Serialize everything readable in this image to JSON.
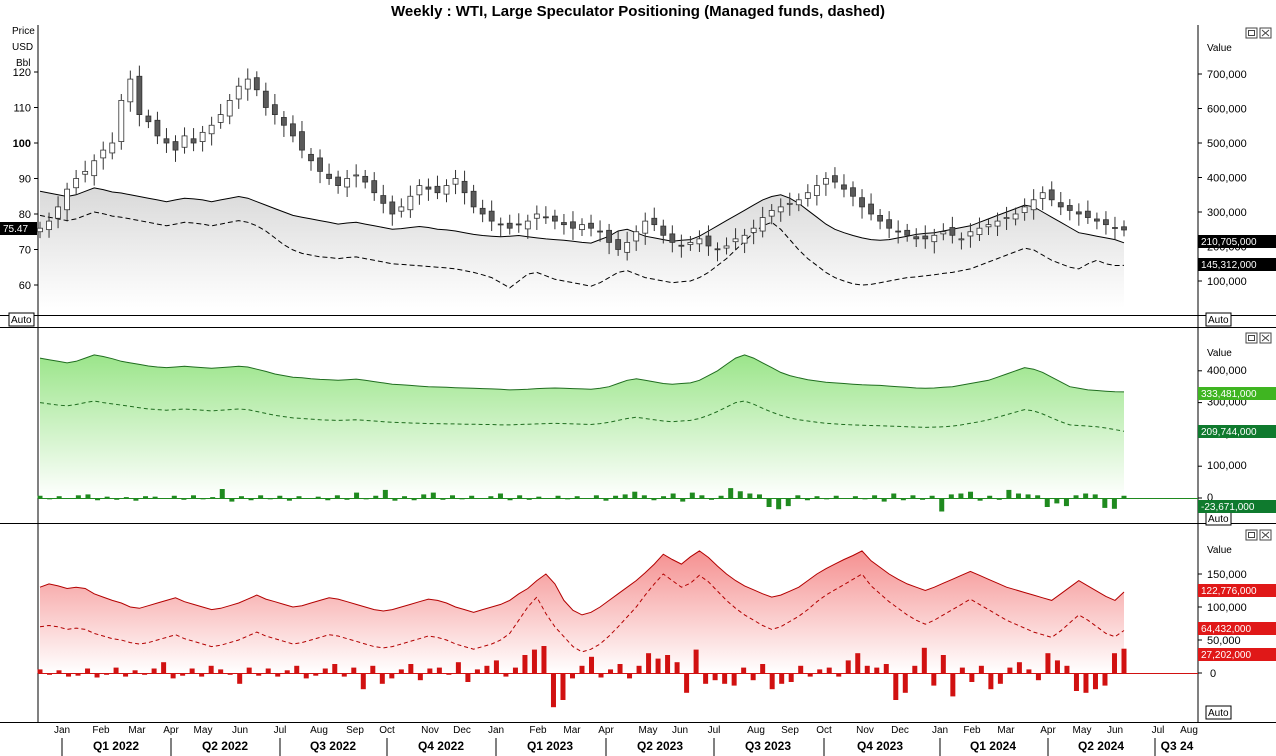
{
  "title": "Weekly : WTI, Large Speculator Positioning (Managed funds, dashed)",
  "auto_label": "Auto",
  "panel1": {
    "y_unit_lines": [
      "Price",
      "USD",
      "Bbl"
    ],
    "left_ticks": [
      60,
      70,
      80,
      90,
      100,
      110,
      120
    ],
    "bold_ticks": [
      100
    ],
    "right_header": "Value",
    "right_ticks": [
      "100,000",
      "200,000",
      "300,000",
      "400,000",
      "500,000",
      "600,000",
      "700,000"
    ],
    "price_tag": "75.47",
    "tags": [
      "210,705,000",
      "145,312,000"
    ]
  },
  "panel2": {
    "right_header": "Value",
    "right_ticks": [
      "0",
      "100,000",
      "200,000",
      "300,000",
      "400,000"
    ],
    "tags": [
      "333,481,000",
      "209,744,000",
      "-23,671,000"
    ]
  },
  "panel3": {
    "right_header": "Value",
    "right_ticks": [
      "0",
      "50,000",
      "100,000",
      "150,000"
    ],
    "tags": [
      "122,776,000",
      "64,432,000",
      "27,202,000"
    ]
  },
  "colors": {
    "candle_down": "#5a5a5a",
    "candle_up": "#ffffff",
    "long_fill": "#9be58a",
    "long_bar": "#1f8a1f",
    "short_fill": "#f59090",
    "short_bar": "#d11111",
    "tag_green": "#3fb521",
    "tag_darkgreen": "#0f7a2e",
    "tag_red": "#e01818"
  },
  "chart_data": {
    "type": "candlestick",
    "title": "Weekly : WTI, Large Speculator Positioning (Managed funds, dashed)",
    "x_months": [
      "Jan",
      "Feb",
      "Mar",
      "Apr",
      "May",
      "Jun",
      "Jul",
      "Aug",
      "Sep",
      "Oct",
      "Nov",
      "Dec",
      "Jan",
      "Feb",
      "Mar",
      "Apr",
      "May",
      "Jun",
      "Jul",
      "Aug",
      "Sep",
      "Oct",
      "Nov",
      "Dec",
      "Jan",
      "Feb",
      "Mar",
      "Apr",
      "May",
      "Jun",
      "Jul",
      "Aug"
    ],
    "x_quarters": [
      "Q1 2022",
      "Q2 2022",
      "Q3 2022",
      "Q4 2022",
      "Q1 2023",
      "Q2 2023",
      "Q3 2023",
      "Q4 2023",
      "Q1 2024",
      "Q2 2024",
      "Q3 24"
    ],
    "price_close": [
      76,
      78,
      82,
      87,
      90,
      92,
      95,
      98,
      100,
      112,
      118,
      108,
      106,
      102,
      100,
      98,
      102,
      100,
      103,
      105,
      108,
      112,
      116,
      118,
      115,
      110,
      108,
      105,
      102,
      98,
      95,
      92,
      90,
      88,
      90,
      91,
      89,
      86,
      83,
      80,
      82,
      85,
      88,
      87,
      86,
      88,
      90,
      86,
      82,
      80,
      78,
      77,
      76,
      77,
      78,
      80,
      79,
      78,
      77,
      76,
      77,
      76,
      75,
      72,
      70,
      72,
      75,
      78,
      77,
      74,
      72,
      71,
      72,
      73,
      71,
      70,
      71,
      73,
      74,
      76,
      79,
      81,
      82,
      83,
      84,
      86,
      88,
      90,
      89,
      87,
      85,
      82,
      80,
      78,
      76,
      75,
      74,
      73,
      73,
      74,
      75,
      74,
      73,
      75,
      76,
      77,
      78,
      79,
      80,
      82,
      84,
      86,
      84,
      82,
      81,
      80,
      79,
      78,
      77,
      76,
      75.5
    ],
    "price_open_offset": [
      1,
      -1,
      2,
      -2,
      1,
      3,
      -3,
      2,
      -2,
      1,
      -1,
      2,
      -1,
      1,
      -2,
      1,
      2,
      -2,
      1,
      -1,
      2,
      -1,
      1,
      -2
    ],
    "total_positioning": [
      360,
      355,
      350,
      345,
      350,
      360,
      370,
      365,
      358,
      355,
      350,
      345,
      340,
      335,
      330,
      335,
      340,
      338,
      335,
      330,
      335,
      340,
      345,
      340,
      330,
      320,
      310,
      300,
      290,
      285,
      280,
      275,
      270,
      265,
      268,
      270,
      265,
      260,
      255,
      250,
      252,
      255,
      258,
      255,
      250,
      248,
      245,
      240,
      235,
      232,
      230,
      228,
      230,
      232,
      228,
      225,
      222,
      220,
      218,
      215,
      212,
      210,
      220,
      230,
      245,
      250,
      240,
      230,
      225,
      220,
      215,
      218,
      220,
      230,
      245,
      260,
      275,
      290,
      305,
      320,
      335,
      345,
      350,
      340,
      325,
      305,
      285,
      265,
      250,
      240,
      232,
      225,
      220,
      218,
      220,
      225,
      230,
      235,
      238,
      240,
      245,
      250,
      255,
      260,
      270,
      280,
      290,
      300,
      310,
      320,
      315,
      300,
      285,
      270,
      255,
      240,
      235,
      230,
      225,
      220,
      210.7
    ],
    "managed_positioning": [
      290,
      285,
      280,
      275,
      280,
      290,
      300,
      295,
      288,
      285,
      280,
      275,
      270,
      265,
      260,
      265,
      270,
      268,
      265,
      260,
      265,
      270,
      275,
      270,
      260,
      245,
      225,
      205,
      190,
      180,
      175,
      170,
      168,
      165,
      168,
      170,
      165,
      160,
      155,
      150,
      148,
      146,
      144,
      142,
      140,
      138,
      135,
      130,
      125,
      118,
      110,
      95,
      80,
      100,
      120,
      125,
      115,
      105,
      100,
      95,
      90,
      85,
      95,
      110,
      125,
      130,
      120,
      110,
      105,
      100,
      95,
      98,
      100,
      110,
      125,
      145,
      165,
      190,
      215,
      240,
      260,
      270,
      250,
      220,
      190,
      165,
      145,
      125,
      110,
      100,
      92,
      88,
      90,
      95,
      100,
      105,
      110,
      112,
      115,
      118,
      122,
      125,
      130,
      135,
      145,
      155,
      165,
      175,
      185,
      195,
      190,
      175,
      160,
      150,
      140,
      135,
      150,
      160,
      150,
      145,
      145.3
    ],
    "long_total": [
      440,
      435,
      430,
      425,
      430,
      440,
      450,
      445,
      438,
      430,
      425,
      420,
      415,
      412,
      410,
      412,
      414,
      412,
      410,
      408,
      410,
      412,
      414,
      412,
      405,
      398,
      390,
      385,
      380,
      378,
      375,
      373,
      372,
      370,
      372,
      374,
      370,
      366,
      362,
      358,
      356,
      354,
      352,
      350,
      349,
      348,
      347,
      346,
      345,
      344,
      343,
      342,
      340,
      341,
      342,
      344,
      345,
      346,
      345,
      344,
      343,
      342,
      345,
      350,
      360,
      370,
      375,
      370,
      365,
      360,
      358,
      360,
      362,
      370,
      385,
      400,
      420,
      440,
      450,
      440,
      425,
      410,
      395,
      385,
      378,
      372,
      368,
      364,
      362,
      360,
      358,
      356,
      355,
      354,
      352,
      350,
      348,
      346,
      345,
      346,
      348,
      350,
      355,
      360,
      365,
      370,
      380,
      390,
      400,
      410,
      405,
      395,
      380,
      365,
      350,
      345,
      340,
      338,
      336,
      334,
      333.5
    ],
    "long_managed": [
      300,
      296,
      292,
      290,
      294,
      300,
      305,
      300,
      296,
      292,
      288,
      284,
      280,
      278,
      276,
      278,
      280,
      278,
      276,
      274,
      276,
      278,
      280,
      278,
      272,
      266,
      260,
      256,
      252,
      250,
      248,
      246,
      245,
      244,
      245,
      246,
      244,
      242,
      240,
      238,
      237,
      236,
      235,
      234,
      234,
      233,
      233,
      232,
      232,
      231,
      231,
      230,
      230,
      231,
      232,
      233,
      234,
      235,
      234,
      233,
      232,
      231,
      234,
      238,
      244,
      250,
      254,
      250,
      246,
      242,
      240,
      242,
      244,
      250,
      260,
      272,
      286,
      300,
      305,
      295,
      282,
      270,
      260,
      252,
      246,
      242,
      238,
      235,
      233,
      231,
      230,
      229,
      228,
      227,
      226,
      225,
      224,
      223,
      222,
      223,
      224,
      226,
      230,
      235,
      240,
      246,
      254,
      262,
      270,
      278,
      274,
      264,
      252,
      240,
      230,
      228,
      226,
      224,
      220,
      215,
      209.7
    ],
    "long_change": [
      5,
      -3,
      4,
      -2,
      6,
      8,
      -5,
      3,
      -4,
      2,
      -6,
      4,
      3,
      -2,
      5,
      -4,
      6,
      -3,
      2,
      20,
      -8,
      4,
      -5,
      6,
      -3,
      5,
      -6,
      4,
      -2,
      3,
      -5,
      6,
      -4,
      12,
      -3,
      5,
      18,
      -6,
      4,
      -5,
      8,
      12,
      -4,
      6,
      -3,
      5,
      -2,
      4,
      10,
      -5,
      6,
      -4,
      3,
      -2,
      5,
      -3,
      4,
      -2,
      6,
      -6,
      5,
      8,
      14,
      6,
      -5,
      4,
      10,
      -8,
      12,
      6,
      -4,
      5,
      22,
      15,
      10,
      8,
      -20,
      -25,
      -18,
      6,
      -5,
      4,
      -3,
      5,
      -2,
      4,
      -3,
      6,
      -8,
      10,
      -5,
      6,
      -4,
      5,
      -30,
      8,
      10,
      14,
      -6,
      5,
      -4,
      18,
      10,
      8,
      6,
      -20,
      -12,
      -18,
      6,
      10,
      8,
      -22,
      -24,
      5
    ],
    "short_total": [
      130,
      135,
      132,
      128,
      130,
      128,
      120,
      115,
      110,
      106,
      100,
      98,
      102,
      106,
      110,
      114,
      108,
      104,
      100,
      96,
      98,
      102,
      106,
      112,
      118,
      112,
      108,
      104,
      100,
      102,
      106,
      110,
      114,
      112,
      108,
      104,
      100,
      96,
      94,
      96,
      100,
      104,
      108,
      112,
      110,
      106,
      100,
      96,
      92,
      96,
      100,
      104,
      110,
      120,
      128,
      140,
      150,
      135,
      110,
      95,
      88,
      92,
      100,
      110,
      120,
      130,
      140,
      152,
      165,
      180,
      172,
      165,
      176,
      185,
      175,
      162,
      150,
      140,
      132,
      126,
      120,
      115,
      118,
      124,
      130,
      140,
      150,
      158,
      165,
      172,
      178,
      185,
      170,
      160,
      150,
      142,
      135,
      130,
      125,
      130,
      136,
      142,
      148,
      154,
      148,
      142,
      136,
      130,
      126,
      122,
      118,
      114,
      110,
      120,
      130,
      140,
      132,
      124,
      116,
      110,
      122.8
    ],
    "short_managed": [
      70,
      72,
      70,
      66,
      68,
      66,
      60,
      56,
      52,
      50,
      46,
      44,
      46,
      50,
      54,
      58,
      52,
      48,
      44,
      40,
      42,
      46,
      50,
      56,
      62,
      56,
      52,
      48,
      44,
      46,
      50,
      54,
      58,
      56,
      52,
      48,
      44,
      40,
      38,
      40,
      44,
      48,
      52,
      56,
      54,
      50,
      44,
      40,
      36,
      40,
      44,
      50,
      60,
      80,
      100,
      115,
      90,
      70,
      55,
      40,
      32,
      36,
      44,
      56,
      70,
      85,
      100,
      118,
      135,
      150,
      140,
      130,
      136,
      148,
      138,
      124,
      110,
      98,
      88,
      80,
      72,
      66,
      70,
      78,
      86,
      96,
      108,
      118,
      126,
      134,
      142,
      150,
      132,
      120,
      108,
      98,
      88,
      80,
      74,
      80,
      88,
      96,
      104,
      112,
      104,
      96,
      88,
      80,
      74,
      68,
      62,
      58,
      54,
      64,
      76,
      88,
      80,
      70,
      60,
      55,
      64.4
    ],
    "short_change": [
      4,
      -2,
      3,
      -4,
      -3,
      5,
      -5,
      -2,
      6,
      -4,
      3,
      -2,
      5,
      12,
      -6,
      -3,
      5,
      -4,
      8,
      4,
      -2,
      -12,
      6,
      -3,
      5,
      -4,
      3,
      8,
      -6,
      -3,
      5,
      10,
      -4,
      6,
      -18,
      8,
      -12,
      -6,
      4,
      10,
      -8,
      5,
      6,
      -2,
      12,
      -10,
      4,
      8,
      14,
      -4,
      6,
      20,
      26,
      30,
      -38,
      -30,
      -6,
      8,
      18,
      -5,
      4,
      10,
      -6,
      8,
      22,
      16,
      20,
      12,
      -22,
      26,
      -12,
      -8,
      -12,
      -14,
      6,
      -8,
      10,
      -18,
      -12,
      -10,
      8,
      -4,
      4,
      6,
      -4,
      14,
      22,
      8,
      6,
      10,
      -30,
      -22,
      8,
      28,
      -14,
      20,
      -26,
      6,
      -10,
      8,
      -18,
      -12,
      6,
      12,
      4,
      -8,
      22,
      14,
      8,
      -20,
      -22,
      -18,
      -14,
      22,
      27
    ]
  }
}
